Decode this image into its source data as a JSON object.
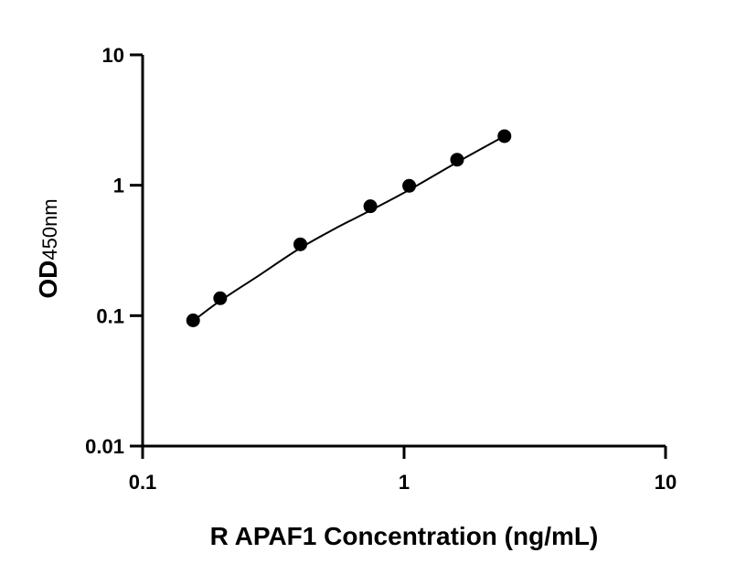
{
  "chart_data": {
    "type": "scatter",
    "xlabel": "R APAF1 Concentration (ng/mL)",
    "ylabel_main": "OD",
    "ylabel_sub": "450nm",
    "x_scale": "log",
    "y_scale": "log",
    "xlim": [
      0.1,
      10
    ],
    "ylim": [
      0.01,
      10
    ],
    "x_ticks": [
      0.1,
      1,
      10
    ],
    "x_tick_labels": [
      "0.1",
      "1",
      "10"
    ],
    "y_ticks": [
      0.01,
      0.1,
      1,
      10
    ],
    "y_tick_labels": [
      "0.01",
      "0.1",
      "1",
      "10"
    ],
    "grid": false,
    "legend": "none",
    "points": [
      {
        "x": 0.156,
        "y": 0.092
      },
      {
        "x": 0.198,
        "y": 0.136
      },
      {
        "x": 0.401,
        "y": 0.352
      },
      {
        "x": 0.743,
        "y": 0.69
      },
      {
        "x": 1.046,
        "y": 0.99
      },
      {
        "x": 1.595,
        "y": 1.57
      },
      {
        "x": 2.42,
        "y": 2.38
      }
    ],
    "curve": [
      {
        "x": 0.156,
        "y": 0.091
      },
      {
        "x": 0.198,
        "y": 0.13
      },
      {
        "x": 0.28,
        "y": 0.205
      },
      {
        "x": 0.401,
        "y": 0.33
      },
      {
        "x": 0.55,
        "y": 0.47
      },
      {
        "x": 0.743,
        "y": 0.64
      },
      {
        "x": 1.046,
        "y": 0.92
      },
      {
        "x": 1.595,
        "y": 1.5
      },
      {
        "x": 2.42,
        "y": 2.38
      }
    ],
    "colors": {
      "marker": "#000000",
      "line": "#000000",
      "axis": "#000000"
    }
  }
}
